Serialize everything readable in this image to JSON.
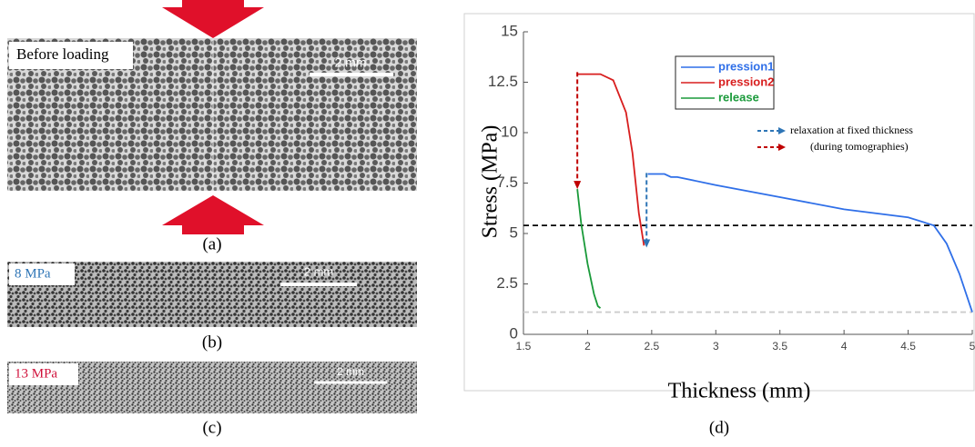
{
  "panels": [
    {
      "label": "Before loading",
      "label_color": "#000000",
      "scale": "2 mm",
      "caption": "(a)"
    },
    {
      "label": "8 MPa",
      "label_color": "#2e75b6",
      "scale": "2 mm",
      "caption": "(b)"
    },
    {
      "label": "13 MPa",
      "label_color": "#d0103a",
      "scale": "2 mm",
      "caption": "(c)"
    }
  ],
  "chart_data": {
    "type": "line",
    "caption": "(d)",
    "x_label": "Thickness (mm)",
    "y_label": "Stress (MPa)",
    "xlim": [
      1.5,
      5
    ],
    "xticks": [
      1.5,
      2,
      2.5,
      3,
      3.5,
      4,
      4.5,
      5
    ],
    "ylim": [
      0,
      15
    ],
    "yticks": [
      0,
      2.5,
      5,
      7.5,
      10,
      12.5,
      15
    ],
    "series": [
      {
        "name": "pression1",
        "color": "#2f6fe8",
        "x": [
          2.47,
          2.6,
          2.65,
          2.7,
          3,
          3.5,
          4,
          4.5,
          4.7,
          4.8,
          4.9,
          5
        ],
        "values": [
          7.95,
          7.95,
          7.8,
          7.8,
          7.4,
          6.8,
          6.2,
          5.8,
          5.4,
          4.5,
          3,
          1.1
        ]
      },
      {
        "name": "pression2",
        "color": "#d81e1e",
        "x": [
          1.92,
          2.1,
          2.2,
          2.3,
          2.35,
          2.4,
          2.44
        ],
        "values": [
          12.9,
          12.9,
          12.6,
          11,
          9,
          6,
          4.4
        ]
      },
      {
        "name": "release",
        "color": "#1a9a3a",
        "x": [
          1.92,
          1.95,
          2,
          2.05,
          2.08,
          2.1
        ],
        "values": [
          7.2,
          5.5,
          3.5,
          2,
          1.4,
          1.3
        ]
      }
    ],
    "arrows": [
      {
        "name": "relaxation at fixed thickness",
        "color": "#2e75b6",
        "x": 2.46,
        "values": [
          8,
          4.3
        ]
      },
      {
        "name": "(during tomographies)",
        "color": "#c00000",
        "x": 1.92,
        "values": [
          13,
          7.2
        ]
      }
    ],
    "hlines": [
      {
        "value": 5.4,
        "color": "#000000"
      },
      {
        "value": 1.1,
        "color": "#cccccc"
      }
    ]
  }
}
